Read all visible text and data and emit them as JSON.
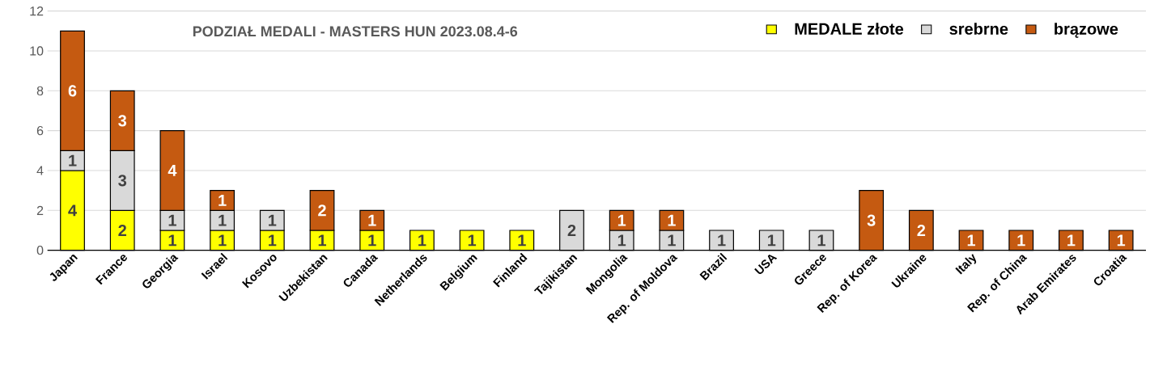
{
  "chart_data": {
    "type": "bar",
    "stacked": true,
    "title": "PODZIAŁ MEDALI - MASTERS HUN 2023.08.4-6",
    "categories": [
      "Japan",
      "France",
      "Georgia",
      "Israel",
      "Kosovo",
      "Uzbekistan",
      "Canada",
      "Netherlands",
      "Belgium",
      "Finland",
      "Tajikistan",
      "Mongolia",
      "Rep. of Moldova",
      "Brazil",
      "USA",
      "Greece",
      "Rep. of Korea",
      "Ukraine",
      "Italy",
      "Rep. of China",
      "Arab Emirates",
      "Croatia"
    ],
    "series": [
      {
        "name": "MEDALE złote",
        "color": "#ffff00",
        "values": [
          4,
          2,
          1,
          1,
          1,
          1,
          1,
          1,
          1,
          1,
          0,
          0,
          0,
          0,
          0,
          0,
          0,
          0,
          0,
          0,
          0,
          0
        ],
        "value_labels": [
          "4",
          "2",
          "1",
          "1",
          "1",
          "1",
          "1",
          "1",
          "1",
          "1",
          null,
          null,
          null,
          null,
          null,
          null,
          null,
          null,
          null,
          null,
          null,
          null
        ]
      },
      {
        "name": "srebrne",
        "color": "#d9d9d9",
        "values": [
          1,
          3,
          1,
          1,
          1,
          0,
          0,
          0,
          0,
          0,
          2,
          1,
          1,
          1,
          1,
          1,
          0,
          0,
          0,
          0,
          0,
          0
        ],
        "value_labels": [
          "1",
          "3",
          "1",
          "1",
          "1",
          null,
          null,
          null,
          null,
          null,
          "2",
          "1",
          "1",
          "1",
          "1",
          "1",
          null,
          null,
          null,
          null,
          null,
          null
        ]
      },
      {
        "name": "brązowe",
        "color": "#c55a11",
        "values": [
          6,
          3,
          4,
          1,
          0,
          2,
          1,
          0,
          0,
          0,
          0,
          1,
          1,
          0,
          0,
          0,
          3,
          2,
          1,
          1,
          1,
          1
        ],
        "value_labels": [
          "6",
          "3",
          "4",
          "1",
          null,
          "2",
          "1",
          null,
          null,
          null,
          null,
          "1",
          "1",
          null,
          null,
          null,
          "3",
          "2",
          "1",
          "1",
          "1",
          "1"
        ]
      }
    ],
    "ylim": [
      0,
      12
    ],
    "yticks": [
      0,
      2,
      4,
      6,
      8,
      10,
      12
    ],
    "grid": "y",
    "legend": "top right"
  }
}
